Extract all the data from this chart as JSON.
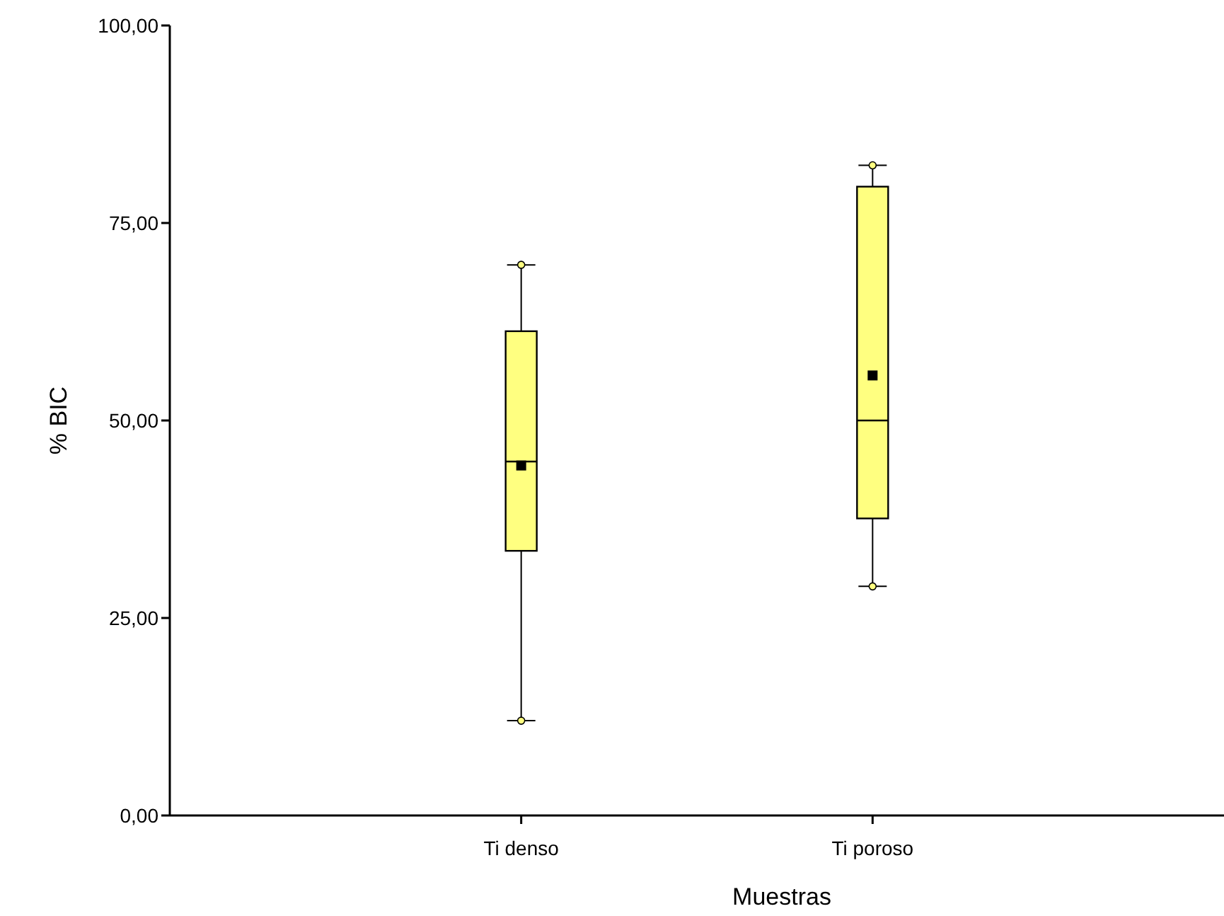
{
  "chart_data": {
    "type": "box",
    "xlabel": "Muestras",
    "ylabel": "% BIC",
    "categories": [
      "Ti denso",
      "Ti poroso"
    ],
    "boxes": [
      {
        "low": 12,
        "q1": 33.5,
        "median": 44.8,
        "q3": 61.3,
        "high": 69.7,
        "mean": 44.3
      },
      {
        "low": 29,
        "q1": 37.6,
        "median": 50,
        "q3": 79.6,
        "high": 82.3,
        "mean": 55.7
      }
    ],
    "color": "#ffff80",
    "series": [
      {
        "type": "scatter",
        "x": [
          "Ti denso",
          "Ti denso",
          "Ti poroso",
          "Ti poroso"
        ],
        "values": [
          69.7,
          12,
          82.3,
          29
        ],
        "color": "#ffff80"
      }
    ],
    "marker": "circle",
    "ylim": [
      0,
      100
    ],
    "yticks": [
      {
        "value": 0,
        "label": "0,00"
      },
      {
        "value": 25,
        "label": "25,00"
      },
      {
        "value": 50,
        "label": "50,00"
      },
      {
        "value": 75,
        "label": "75,00"
      },
      {
        "value": 100,
        "label": "100,00"
      }
    ],
    "grid": false
  }
}
